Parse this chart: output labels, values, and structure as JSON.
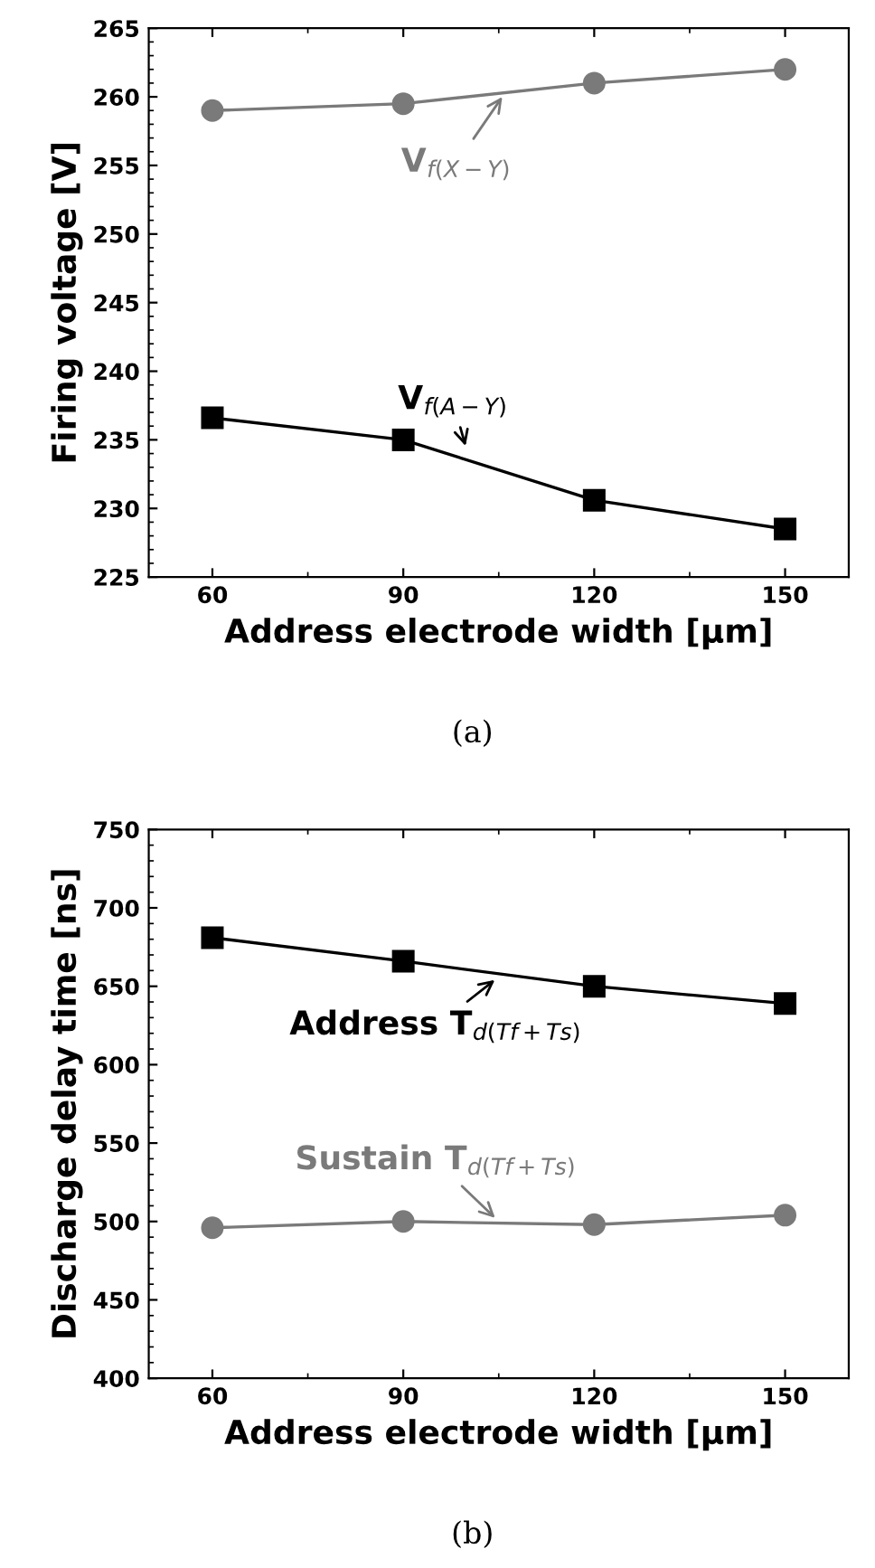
{
  "chart_data": [
    {
      "type": "line",
      "xlabel": "Address electrode width [µm]",
      "ylabel": "Firing voltage [V]",
      "x": [
        60,
        90,
        120,
        150
      ],
      "xlim": [
        50,
        160
      ],
      "xticks": [
        60,
        90,
        120,
        150
      ],
      "ylim": [
        225,
        265
      ],
      "yticks": [
        225,
        230,
        235,
        240,
        245,
        250,
        255,
        260,
        265
      ],
      "series": [
        {
          "color": "#7a7a7a",
          "marker": "circle",
          "values": [
            259,
            259.5,
            261,
            262
          ]
        },
        {
          "color": "#000000",
          "marker": "square",
          "values": [
            236.6,
            235,
            230.6,
            228.5
          ]
        }
      ],
      "annotations": [
        {
          "text": "V$_{f(X−Y)}$",
          "x": 106,
          "y": 260.3
        },
        {
          "text": "V$_{f(A−Y)}$",
          "x": 100,
          "y": 234.2
        },
        "(a)"
      ],
      "grid": false,
      "legend": false,
      "line_style": "solid"
    },
    {
      "type": "line",
      "xlabel": "Address electrode width [µm]",
      "ylabel": "Discharge delay time [ns]",
      "x": [
        60,
        90,
        120,
        150
      ],
      "xlim": [
        50,
        160
      ],
      "xticks": [
        60,
        90,
        120,
        150
      ],
      "ylim": [
        400,
        750
      ],
      "yticks": [
        400,
        450,
        500,
        550,
        600,
        650,
        700,
        750
      ],
      "series": [
        {
          "color": "#000000",
          "marker": "square",
          "values": [
            681,
            666,
            650,
            639
          ]
        },
        {
          "color": "#7a7a7a",
          "marker": "circle",
          "values": [
            496,
            500,
            498,
            504
          ]
        }
      ],
      "annotations": [
        {
          "text": "Address T$_{d(Tf+Ts)}$",
          "x": 105,
          "y": 656
        },
        {
          "text": "Sustain T$_{d(Tf+Ts)}$",
          "x": 105,
          "y": 500
        },
        "(b)"
      ],
      "grid": false,
      "legend": false,
      "line_style": "solid"
    }
  ]
}
